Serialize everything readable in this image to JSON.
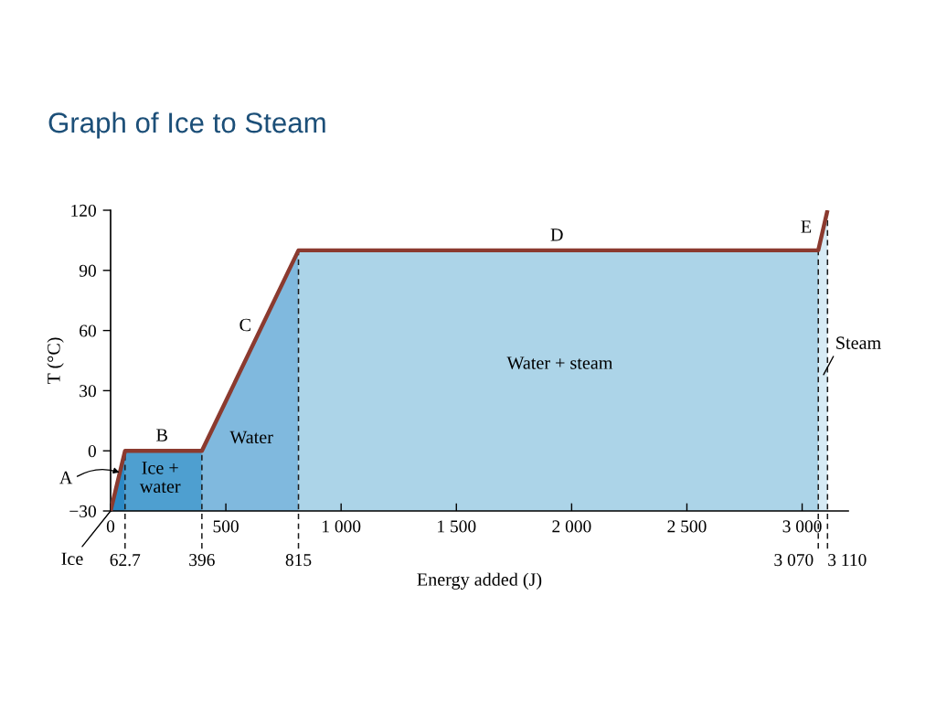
{
  "chart_data": {
    "type": "line",
    "title": "Graph of Ice to Steam",
    "xlabel": "Energy added (J)",
    "ylabel": "T (°C)",
    "xlim": [
      0,
      3200
    ],
    "ylim": [
      -30,
      120
    ],
    "xticks": [
      0,
      500,
      {
        "value": 1000,
        "label": "1 000"
      },
      {
        "value": 1500,
        "label": "1 500"
      },
      {
        "value": 2000,
        "label": "2 000"
      },
      {
        "value": 2500,
        "label": "2 500"
      },
      {
        "value": 3000,
        "label": "3 000"
      }
    ],
    "yticks": [
      {
        "value": -30,
        "label": "−30"
      },
      0,
      30,
      60,
      90,
      120
    ],
    "grid": false,
    "series": [
      {
        "type": "area",
        "color": "#2c89c5",
        "x": [
          0,
          62.7,
          62.7
        ],
        "values": [
          -30,
          0,
          -30
        ]
      },
      {
        "type": "area",
        "color": "#4e9fd0",
        "x": [
          62.7,
          62.7,
          396,
          396
        ],
        "values": [
          -30,
          0,
          0,
          -30
        ]
      },
      {
        "type": "area",
        "color": "#80b9de",
        "x": [
          396,
          396,
          815,
          815
        ],
        "values": [
          -30,
          0,
          100,
          -30
        ]
      },
      {
        "type": "area",
        "color": "#acd4e8",
        "x": [
          815,
          815,
          3070,
          3070
        ],
        "values": [
          -30,
          100,
          100,
          -30
        ]
      },
      {
        "type": "area",
        "color": "#d7ebf5",
        "x": [
          3070,
          3070,
          3110,
          3110
        ],
        "values": [
          -30,
          100,
          120,
          -30
        ]
      },
      {
        "type": "line",
        "color": "#8b3a2f",
        "x": [
          0,
          62.7,
          396,
          815,
          3070,
          3110
        ],
        "values": [
          -30,
          0,
          0,
          100,
          100,
          120
        ]
      }
    ],
    "ref_lines": [
      {
        "axis": "x",
        "value": 62.7,
        "label": "62.7",
        "line_style": "dashed",
        "color": "#1a1a1a"
      },
      {
        "axis": "x",
        "value": 396,
        "label": "396",
        "line_style": "dashed",
        "color": "#1a1a1a"
      },
      {
        "axis": "x",
        "value": 815,
        "label": "815",
        "line_style": "dashed",
        "color": "#1a1a1a"
      },
      {
        "axis": "x",
        "value": 3070,
        "label": "3 070",
        "line_style": "dashed",
        "color": "#1a1a1a"
      },
      {
        "axis": "x",
        "value": 3110,
        "label": "3 110",
        "line_style": "dashed",
        "color": "#1a1a1a"
      }
    ],
    "annotations": [
      {
        "text": "A",
        "x": 44,
        "y": -11
      },
      "B",
      "C",
      "D",
      "E",
      "Ice +\nwater",
      "Water",
      "Water + steam",
      {
        "text": "Steam",
        "x": 3093,
        "y": 38
      },
      {
        "text": "Ice",
        "x": 0,
        "y": -30
      }
    ]
  }
}
